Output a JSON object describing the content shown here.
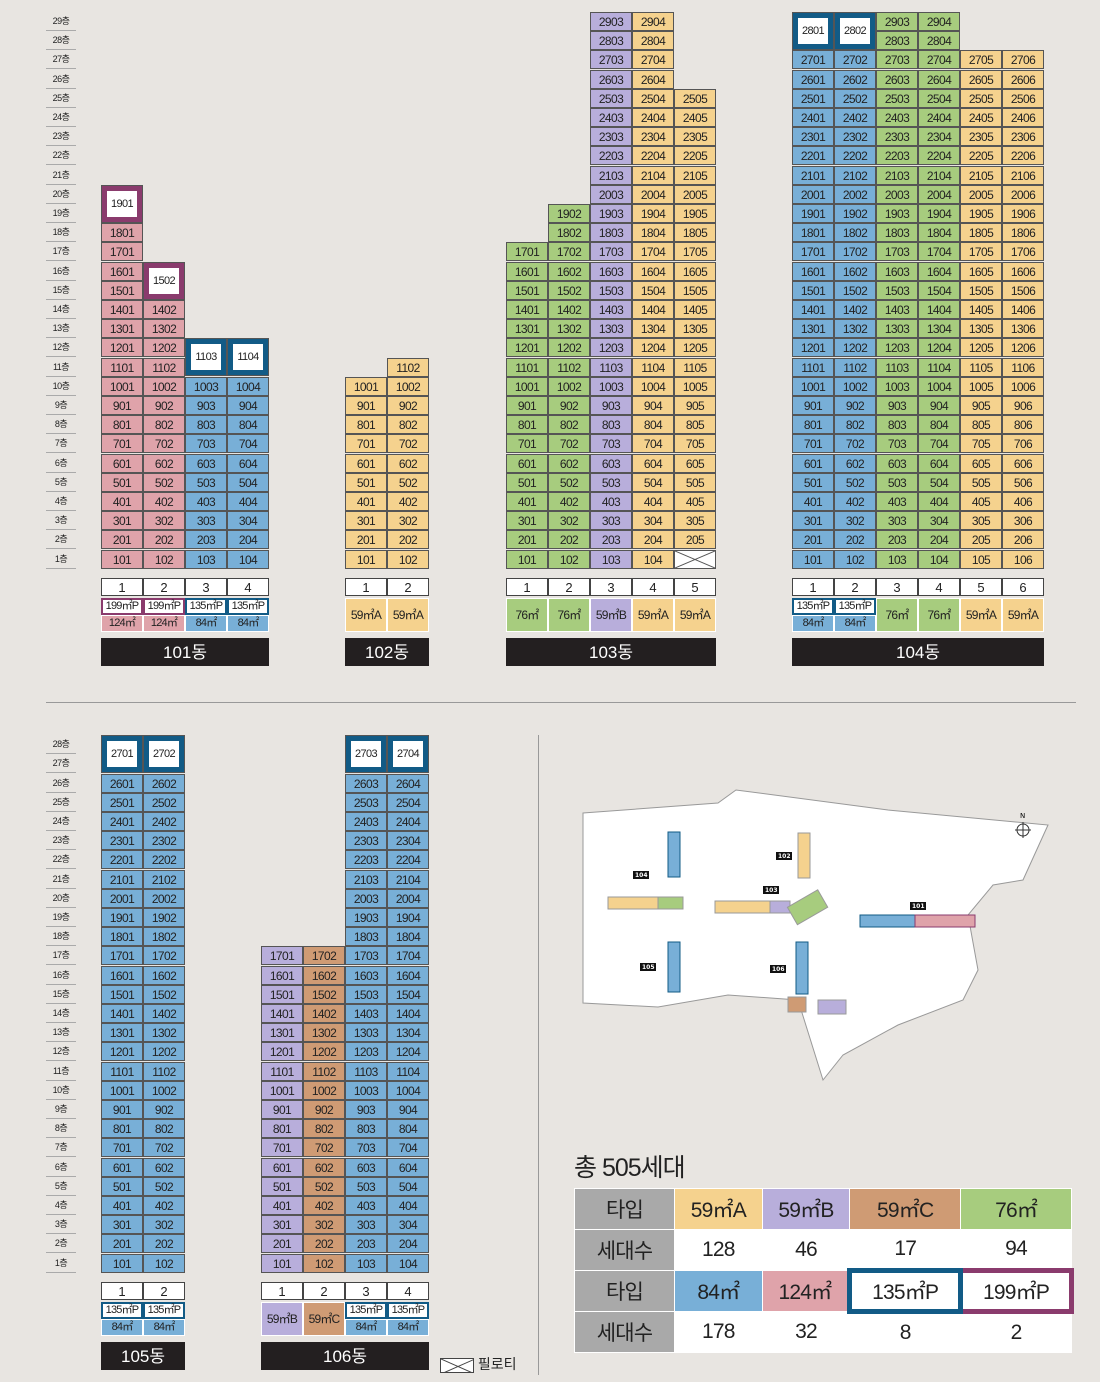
{
  "buildings": [
    {
      "name": "101동",
      "floors": 29,
      "lines": [
        {
          "label": "1",
          "types": [
            {
              "text": "199㎡P",
              "cls": "t199"
            },
            {
              "text": "124㎡",
              "cls": "t124"
            }
          ],
          "low": "t124",
          "lowMax": 18,
          "bigFloor": 19,
          "bigCls": "t199",
          "bigNum": "1901"
        },
        {
          "label": "2",
          "types": [
            {
              "text": "199㎡P",
              "cls": "t199"
            },
            {
              "text": "124㎡",
              "cls": "t124"
            }
          ],
          "low": "t124",
          "lowMax": 14,
          "bigFloor": 15,
          "bigCls": "t199",
          "bigNum": "1502"
        },
        {
          "label": "3",
          "types": [
            {
              "text": "135㎡P",
              "cls": "t135"
            },
            {
              "text": "84㎡",
              "cls": "t84"
            }
          ],
          "low": "t84",
          "lowMax": 10,
          "bigFloor": 11,
          "bigCls": "t135",
          "bigNum": "1103"
        },
        {
          "label": "4",
          "types": [
            {
              "text": "135㎡P",
              "cls": "t135"
            },
            {
              "text": "84㎡",
              "cls": "t84"
            }
          ],
          "low": "t84",
          "lowMax": 10,
          "bigFloor": 11,
          "bigCls": "t135",
          "bigNum": "1104"
        }
      ]
    },
    {
      "name": "102동",
      "lines": [
        {
          "label": "1",
          "types": [
            {
              "text": "59㎡A",
              "cls": "t59A"
            }
          ],
          "low": "t59A",
          "lowMax": 10
        },
        {
          "label": "2",
          "types": [
            {
              "text": "59㎡A",
              "cls": "t59A"
            }
          ],
          "low": "t59A",
          "lowMax": 11
        }
      ]
    },
    {
      "name": "103동",
      "lines": [
        {
          "label": "1",
          "types": [
            {
              "text": "76㎡",
              "cls": "t76"
            }
          ],
          "low": "t76",
          "lowMax": 17
        },
        {
          "label": "2",
          "types": [
            {
              "text": "76㎡",
              "cls": "t76"
            }
          ],
          "low": "t76",
          "lowMax": 19
        },
        {
          "label": "3",
          "types": [
            {
              "text": "59㎡B",
              "cls": "t59B"
            }
          ],
          "low": "t59B",
          "lowMax": 29
        },
        {
          "label": "4",
          "types": [
            {
              "text": "59㎡A",
              "cls": "t59A"
            }
          ],
          "low": "t59A",
          "lowMax": 29
        },
        {
          "label": "5",
          "types": [
            {
              "text": "59㎡A",
              "cls": "t59A"
            }
          ],
          "low": "t59A",
          "lowMax": 25,
          "pilotis": true
        }
      ]
    },
    {
      "name": "104동",
      "lines": [
        {
          "label": "1",
          "types": [
            {
              "text": "135㎡P",
              "cls": "t135"
            },
            {
              "text": "84㎡",
              "cls": "t84"
            }
          ],
          "low": "t84",
          "lowMax": 27,
          "bigFloor": 28,
          "bigCls": "t135",
          "bigNum": "2801"
        },
        {
          "label": "2",
          "types": [
            {
              "text": "135㎡P",
              "cls": "t135"
            },
            {
              "text": "84㎡",
              "cls": "t84"
            }
          ],
          "low": "t84",
          "lowMax": 27,
          "bigFloor": 28,
          "bigCls": "t135",
          "bigNum": "2802"
        },
        {
          "label": "3",
          "types": [
            {
              "text": "76㎡",
              "cls": "t76"
            }
          ],
          "low": "t76",
          "lowMax": 29
        },
        {
          "label": "4",
          "types": [
            {
              "text": "76㎡",
              "cls": "t76"
            }
          ],
          "low": "t76",
          "lowMax": 29
        },
        {
          "label": "5",
          "types": [
            {
              "text": "59㎡A",
              "cls": "t59A"
            }
          ],
          "low": "t59A",
          "lowMax": 27
        },
        {
          "label": "6",
          "types": [
            {
              "text": "59㎡A",
              "cls": "t59A"
            }
          ],
          "low": "t59A",
          "lowMax": 27
        }
      ]
    },
    {
      "name": "105동",
      "lines": [
        {
          "label": "1",
          "types": [
            {
              "text": "135㎡P",
              "cls": "t135"
            },
            {
              "text": "84㎡",
              "cls": "t84"
            }
          ],
          "low": "t84",
          "lowMax": 26,
          "bigFloor": 27,
          "bigCls": "t135",
          "bigNum": "2701"
        },
        {
          "label": "2",
          "types": [
            {
              "text": "135㎡P",
              "cls": "t135"
            },
            {
              "text": "84㎡",
              "cls": "t84"
            }
          ],
          "low": "t84",
          "lowMax": 26,
          "bigFloor": 27,
          "bigCls": "t135",
          "bigNum": "2702"
        }
      ]
    },
    {
      "name": "106동",
      "lines": [
        {
          "label": "1",
          "types": [
            {
              "text": "59㎡B",
              "cls": "t59B"
            }
          ],
          "low": "t59B",
          "lowMax": 17
        },
        {
          "label": "2",
          "types": [
            {
              "text": "59㎡C",
              "cls": "t59C"
            }
          ],
          "low": "t59C",
          "lowMax": 17
        },
        {
          "label": "3",
          "types": [
            {
              "text": "135㎡P",
              "cls": "t135"
            },
            {
              "text": "84㎡",
              "cls": "t84"
            }
          ],
          "low": "t84",
          "lowMax": 26,
          "bigFloor": 27,
          "bigCls": "t135",
          "bigNum": "2703"
        },
        {
          "label": "4",
          "types": [
            {
              "text": "135㎡P",
              "cls": "t135"
            },
            {
              "text": "84㎡",
              "cls": "t84"
            }
          ],
          "low": "t84",
          "lowMax": 26,
          "bigFloor": 27,
          "bigCls": "t135",
          "bigNum": "2704"
        }
      ]
    }
  ],
  "floorsTop": 29,
  "floorsBottom": 28,
  "floorSuffix": "층",
  "total": "총 505세대",
  "legend_pilotis": "필로티",
  "summary": {
    "row1": {
      "head": "타입",
      "cells": [
        {
          "text": "59㎡A",
          "cls": "t59A"
        },
        {
          "text": "59㎡B",
          "cls": "t59B"
        },
        {
          "text": "59㎡C",
          "cls": "t59C"
        },
        {
          "text": "76㎡",
          "cls": "t76"
        }
      ]
    },
    "row2": {
      "head": "세대수",
      "cells": [
        "128",
        "46",
        "17",
        "94"
      ]
    },
    "row3": {
      "head": "타입",
      "cells": [
        {
          "text": "84㎡",
          "cls": "t84"
        },
        {
          "text": "124㎡",
          "cls": "t124"
        },
        {
          "text": "135㎡P",
          "cls": "t135"
        },
        {
          "text": "199㎡P",
          "cls": "t199"
        }
      ]
    },
    "row4": {
      "head": "세대수",
      "cells": [
        "178",
        "32",
        "8",
        "2"
      ]
    }
  },
  "map": {
    "labels": [
      "101",
      "102",
      "103",
      "104",
      "105",
      "106"
    ],
    "north": "N"
  }
}
